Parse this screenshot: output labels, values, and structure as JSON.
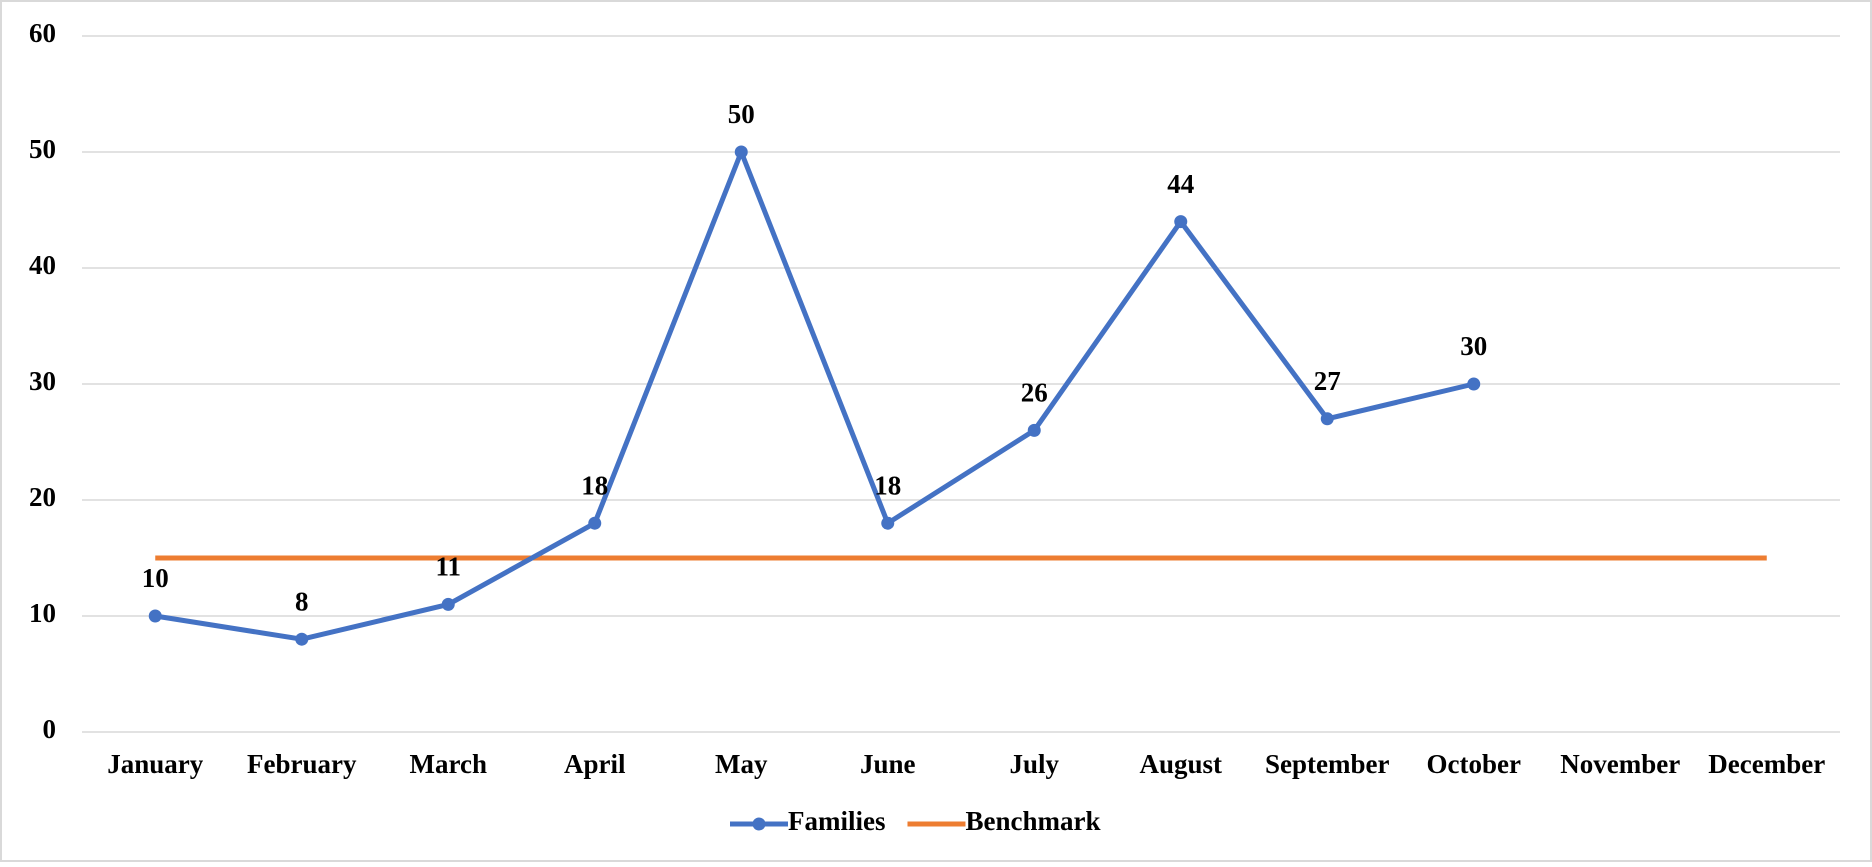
{
  "chart_data": {
    "type": "line",
    "categories": [
      "January",
      "February",
      "March",
      "April",
      "May",
      "June",
      "July",
      "August",
      "September",
      "October",
      "November",
      "December"
    ],
    "series": [
      {
        "name": "Families",
        "color": "#4472c4",
        "markers": true,
        "data_labels": true,
        "values": [
          10,
          8,
          11,
          18,
          50,
          18,
          26,
          44,
          27,
          30,
          null,
          null
        ]
      },
      {
        "name": "Benchmark",
        "color": "#ed7d31",
        "markers": false,
        "data_labels": false,
        "values": [
          15,
          15,
          15,
          15,
          15,
          15,
          15,
          15,
          15,
          15,
          15,
          15
        ]
      }
    ],
    "ylim": [
      0,
      60
    ],
    "yticks": [
      0,
      10,
      20,
      30,
      40,
      50,
      60
    ],
    "grid": true,
    "legend": "bottom"
  }
}
